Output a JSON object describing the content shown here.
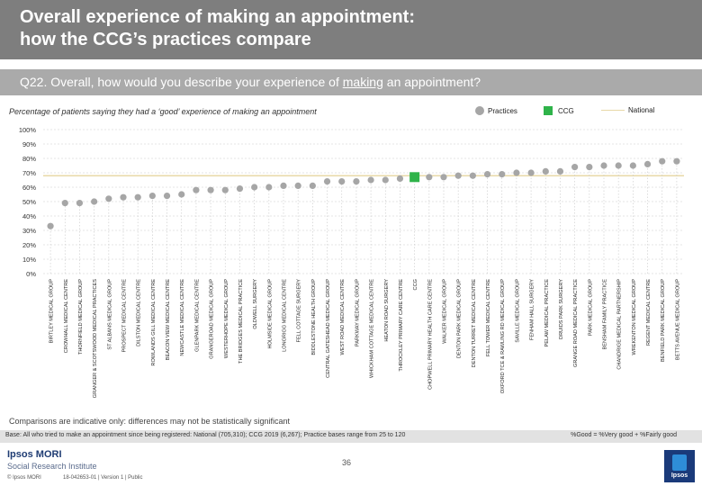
{
  "header": {
    "title_line1": "Overall experience of making an appointment:",
    "title_line2": "how the CCG’s practices compare"
  },
  "question": {
    "prefix": "Q22. Overall, how would you describe your experience of ",
    "underlined": "making",
    "suffix": " an appointment?"
  },
  "subtitle": "Percentage of patients saying they had a ‘good’ experience of making an appointment",
  "legend": {
    "practices": "Practices",
    "ccg": "CCG",
    "national": "National"
  },
  "colors": {
    "practice_marker": "#a6a6a6",
    "ccg_marker": "#2fb34a",
    "national_line": "#e8d9a8",
    "header_bg": "#7e7e7e",
    "question_bg": "#aaaaaa"
  },
  "chart_data": {
    "type": "scatter",
    "y_ticks": [
      "0%",
      "10%",
      "20%",
      "30%",
      "40%",
      "50%",
      "60%",
      "70%",
      "80%",
      "90%",
      "100%"
    ],
    "ylim": [
      0,
      100
    ],
    "national_value": 68,
    "ccg_value": 67,
    "categories": [
      "BIRTLEY MEDICAL GROUP",
      "CROWHALL MEDICAL CENTRE",
      "THORNFIELD MEDICAL GROUP",
      "GRANGER & SCOTSWOOD MEDICAL PRACTICES",
      "ST ALBANS MEDICAL GROUP",
      "PROSPECT MEDICAL CENTRE",
      "DILSTON MEDICAL CENTRE",
      "ROWLANDS GILL MEDICAL CENTRE",
      "BEACON VIEW MEDICAL CENTRE",
      "NEWCASTLE MEDICAL CENTRE",
      "GLENPARK MEDICAL CENTRE",
      "GRANGEROAD MEDICAL GROUP",
      "WESTERHOPE MEDICAL GROUP",
      "THE BRIDGES MEDICAL PRACTICE",
      "OLDWELL SURGERY",
      "HOLMSIDE MEDICAL GROUP",
      "LONGRIGG MEDICAL CENTRE",
      "FELL COTTAGE SURGERY",
      "BIDDLESTONE HEALTH GROUP",
      "CENTRAL GATESHEAD MEDICAL GROUP",
      "WEST ROAD MEDICAL CENTRE",
      "PARKWAY MEDICAL GROUP",
      "WHICKHAM COTTAGE MEDICAL CENTRE",
      "HEATON ROAD SURGERY",
      "THROCKLEY PRIMARY CARE CENTRE",
      "CCG",
      "CHOPWELL PRIMARY HEALTH CARE CENTRE",
      "WALKER MEDICAL GROUP",
      "DENTON PARK MEDICAL GROUP",
      "DENTON TURRET MEDICAL CENTRE",
      "FELL TOWER MEDICAL CENTRE",
      "OXFORD TCE & RAWLING RD MEDICAL GROUP",
      "SAVILLE MEDICAL GROUP",
      "FENHAM HALL SURGERY",
      "PELAW MEDICAL PRACTICE",
      "DRUIDS PARK SURGERY",
      "GRANGE ROAD MEDICAL PRACTICE",
      "PARK MEDICAL GROUP",
      "BENSHAM FAMILY PRACTICE",
      "CHANDRIGE MEDICAL PARTNERSHIP",
      "WREKENTON MEDICAL GROUP",
      "REGENT MEDICAL CENTRE",
      "BENFIELD PARK MEDICAL GROUP",
      "BETTS AVENUE MEDICAL GROUP"
    ],
    "values": [
      33,
      49,
      49,
      50,
      52,
      53,
      53,
      54,
      54,
      55,
      58,
      58,
      58,
      59,
      60,
      60,
      61,
      61,
      61,
      64,
      64,
      64,
      65,
      65,
      66,
      67,
      67,
      67,
      68,
      68,
      69,
      69,
      70,
      70,
      71,
      71,
      74,
      74,
      75,
      75,
      75,
      76,
      78,
      78
    ]
  },
  "footnote": "Comparisons are indicative only: differences may not be statistically significant",
  "base": "Base: All who tried to make an appointment since being registered: National (705,310); CCG 2019 (6,267); Practice bases range from 25 to 120",
  "good_definition": "%Good = %Very good + %Fairly good",
  "footer": {
    "brand": "Ipsos MORI",
    "sub_brand": "Social Research Institute",
    "copyright": "© Ipsos MORI",
    "job_ref": "18-042653-01 | Version 1 | Public",
    "page_number": "36",
    "logo_text": "Ipsos"
  }
}
